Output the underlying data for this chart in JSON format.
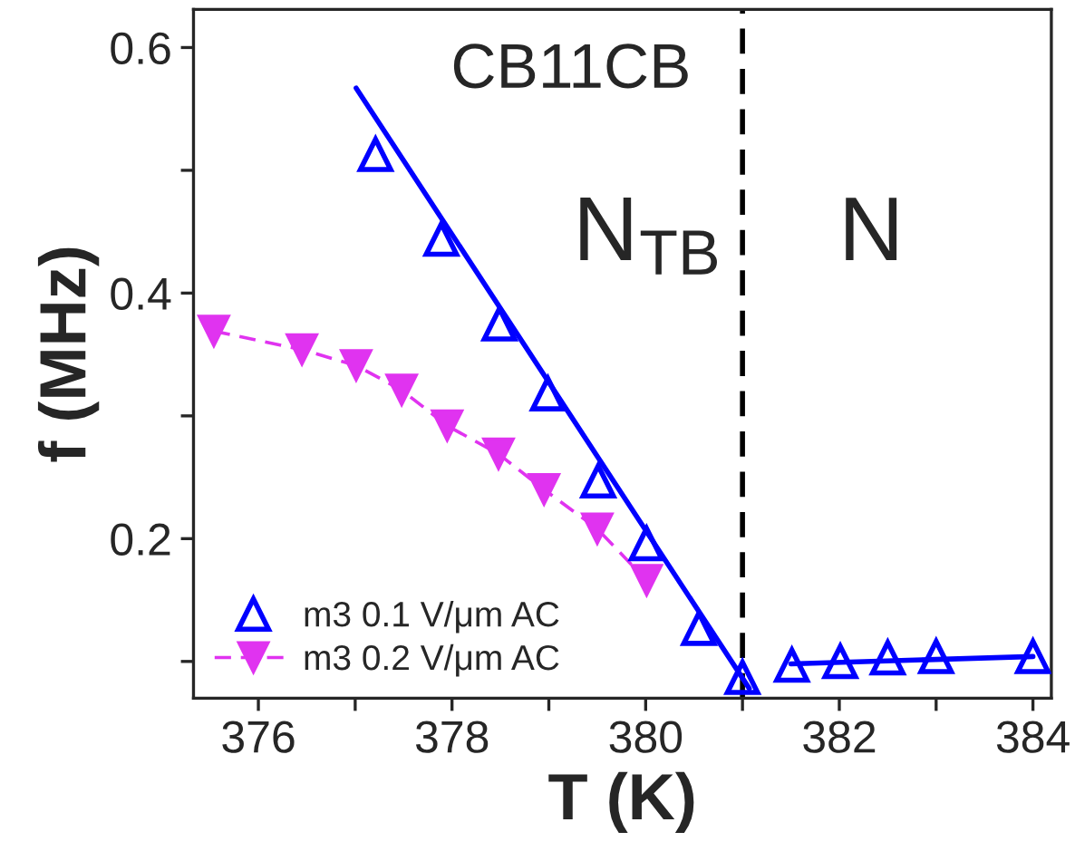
{
  "chart_data": {
    "type": "scatter",
    "xlabel": "T (K)",
    "ylabel": "f (MHz)",
    "xlim": [
      375.33,
      384.19
    ],
    "ylim": [
      0.07,
      0.631
    ],
    "xticks": [
      376,
      {
        "value": 377,
        "label": null
      },
      378,
      {
        "value": 379,
        "label": null
      },
      380,
      {
        "value": 381,
        "label": null
      },
      382,
      {
        "value": 383,
        "label": null
      },
      384
    ],
    "yticks": [
      {
        "value": 0.1,
        "label": null
      },
      0.2,
      {
        "value": 0.3,
        "label": null
      },
      0.4,
      {
        "value": 0.5,
        "label": null
      },
      0.6
    ],
    "series": [
      {
        "name": "m3 0.1 V/μm AC",
        "color": "#0000ff",
        "marker": "triangle",
        "x": [
          377.21,
          377.89,
          378.49,
          378.99,
          379.51,
          380.01,
          380.55,
          381.0,
          381.51,
          382.01,
          382.5,
          383.0,
          384.0
        ],
        "values": [
          0.513,
          0.444,
          0.375,
          0.318,
          0.247,
          0.196,
          0.127,
          0.087,
          0.097,
          0.1,
          0.103,
          0.104,
          0.104
        ]
      },
      {
        "name": "m3 0.2 V/μm AC",
        "type": "line",
        "color": "#e033f0",
        "marker": "triangle",
        "line_style": "dashed",
        "x": [
          375.54,
          376.45,
          377.01,
          377.48,
          377.95,
          378.48,
          378.95,
          379.5,
          380.01
        ],
        "values": [
          0.369,
          0.354,
          0.341,
          0.321,
          0.292,
          0.269,
          0.24,
          0.208,
          0.166
        ]
      },
      {
        "type": "line",
        "color": "#0000ff",
        "marker": "none",
        "line_style": "solid",
        "x": [
          377.01,
          381.07
        ],
        "values": [
          0.567,
          0.078
        ]
      },
      {
        "type": "line",
        "color": "#0000ff",
        "marker": "none",
        "line_style": "solid",
        "x": [
          381.5,
          384.0
        ],
        "values": [
          0.098,
          0.104
        ]
      }
    ],
    "ref_lines": [
      {
        "axis": "x",
        "value": 381,
        "color": "#000000",
        "line_style": "dashed"
      }
    ],
    "annotations": [
      "CB11CB",
      "N$_{TB}$",
      "N"
    ],
    "legend": "bottom left",
    "grid": false
  }
}
